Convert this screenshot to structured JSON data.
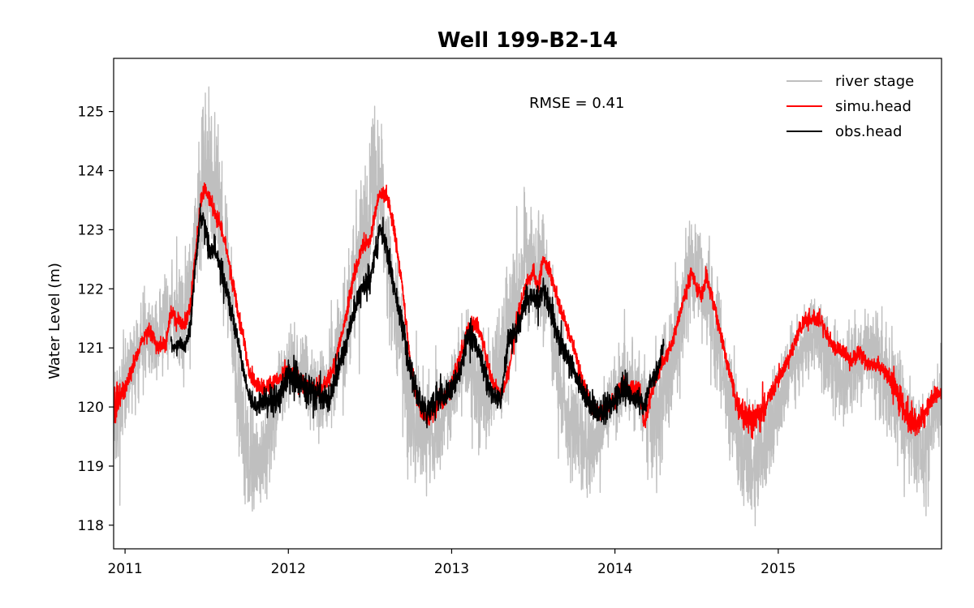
{
  "chart_data": {
    "type": "line",
    "title": "Well 199-B2-14",
    "xlabel": "",
    "ylabel": "Water Level (m)",
    "xlim": [
      2010.93,
      2016.0
    ],
    "ylim": [
      117.6,
      125.9
    ],
    "x_ticks": [
      {
        "value": 2011,
        "label": "2011"
      },
      {
        "value": 2012,
        "label": "2012"
      },
      {
        "value": 2013,
        "label": "2013"
      },
      {
        "value": 2014,
        "label": "2014"
      },
      {
        "value": 2015,
        "label": "2015"
      }
    ],
    "y_ticks": [
      118,
      119,
      120,
      121,
      122,
      123,
      124,
      125
    ],
    "grid": false,
    "legend_position": "top-right",
    "annotation": "RMSE = 0.41",
    "series": [
      {
        "name": "river stage",
        "color": "#bfbfbf",
        "x": [
          2010.93,
          2011.0,
          2011.05,
          2011.12,
          2011.2,
          2011.28,
          2011.35,
          2011.42,
          2011.46,
          2011.5,
          2011.54,
          2011.58,
          2011.64,
          2011.7,
          2011.75,
          2011.8,
          2011.88,
          2011.95,
          2012.02,
          2012.1,
          2012.18,
          2012.25,
          2012.3,
          2012.36,
          2012.42,
          2012.47,
          2012.52,
          2012.56,
          2012.6,
          2012.65,
          2012.7,
          2012.76,
          2012.82,
          2012.88,
          2012.95,
          2013.02,
          2013.08,
          2013.15,
          2013.22,
          2013.3,
          2013.38,
          2013.45,
          2013.5,
          2013.55,
          2013.6,
          2013.65,
          2013.72,
          2013.8,
          2013.88,
          2013.95,
          2014.02,
          2014.1,
          2014.18,
          2014.25,
          2014.32,
          2014.38,
          2014.44,
          2014.5,
          2014.55,
          2014.62,
          2014.7,
          2014.78,
          2014.85,
          2014.92,
          2015.0,
          2015.08,
          2015.15,
          2015.22,
          2015.3,
          2015.38,
          2015.45,
          2015.52,
          2015.6,
          2015.68,
          2015.75,
          2015.82,
          2015.88,
          2015.95,
          2016.0
        ],
        "y": [
          119.9,
          120.3,
          120.7,
          121.2,
          121.2,
          121.6,
          121.4,
          122.5,
          123.5,
          124.0,
          123.9,
          123.1,
          122.0,
          120.2,
          119.2,
          118.9,
          119.6,
          120.3,
          120.8,
          120.6,
          120.2,
          120.4,
          120.9,
          121.5,
          122.5,
          122.8,
          123.8,
          123.8,
          122.5,
          121.8,
          120.9,
          119.9,
          119.5,
          119.5,
          119.7,
          120.4,
          120.8,
          120.5,
          120.2,
          120.8,
          121.7,
          122.5,
          122.3,
          122.4,
          121.7,
          120.5,
          119.8,
          119.3,
          119.3,
          119.9,
          120.3,
          120.5,
          120.1,
          119.6,
          120.6,
          121.1,
          122.0,
          122.5,
          122.0,
          121.3,
          120.1,
          119.3,
          118.9,
          119.3,
          119.9,
          120.6,
          121.0,
          121.2,
          120.9,
          120.4,
          120.6,
          120.9,
          120.8,
          120.4,
          120.0,
          119.6,
          119.2,
          119.7,
          120.3
        ],
        "amplitude": [
          1.4,
          1.4,
          1.3,
          1.2,
          1.0,
          1.2,
          1.4,
          1.6,
          1.8,
          1.9,
          1.8,
          1.6,
          1.6,
          1.7,
          1.6,
          1.4,
          1.2,
          1.0,
          0.8,
          0.9,
          1.0,
          1.2,
          1.4,
          1.6,
          1.7,
          1.9,
          2.0,
          1.8,
          1.6,
          1.7,
          1.6,
          1.5,
          1.3,
          1.2,
          1.0,
          0.9,
          1.0,
          1.2,
          1.4,
          1.5,
          1.7,
          1.6,
          1.6,
          1.5,
          1.4,
          1.4,
          1.3,
          1.2,
          1.0,
          0.9,
          0.9,
          1.1,
          1.3,
          1.4,
          1.5,
          1.5,
          1.4,
          1.3,
          1.3,
          1.3,
          1.4,
          1.4,
          1.3,
          1.2,
          1.1,
          1.0,
          1.0,
          1.0,
          1.0,
          1.1,
          1.2,
          1.3,
          1.3,
          1.3,
          1.3,
          1.2,
          1.1,
          1.0,
          0.9
        ]
      },
      {
        "name": "simu.head",
        "color": "#ff0000",
        "x": [
          2010.93,
          2010.95,
          2011.0,
          2011.05,
          2011.1,
          2011.15,
          2011.2,
          2011.25,
          2011.28,
          2011.32,
          2011.36,
          2011.4,
          2011.43,
          2011.46,
          2011.49,
          2011.52,
          2011.55,
          2011.58,
          2011.62,
          2011.66,
          2011.7,
          2011.73,
          2011.76,
          2011.8,
          2011.85,
          2011.9,
          2011.95,
          2012.0,
          2012.05,
          2012.1,
          2012.15,
          2012.2,
          2012.25,
          2012.3,
          2012.35,
          2012.4,
          2012.45,
          2012.5,
          2012.53,
          2012.56,
          2012.6,
          2012.65,
          2012.7,
          2012.75,
          2012.8,
          2012.85,
          2012.9,
          2012.95,
          2013.0,
          2013.05,
          2013.1,
          2013.15,
          2013.2,
          2013.25,
          2013.3,
          2013.35,
          2013.4,
          2013.45,
          2013.5,
          2013.53,
          2013.56,
          2013.6,
          2013.65,
          2013.7,
          2013.75,
          2013.8,
          2013.85,
          2013.9,
          2013.95,
          2014.0,
          2014.05,
          2014.1,
          2014.15,
          2014.18,
          2014.22,
          2014.26,
          2014.3,
          2014.35,
          2014.4,
          2014.44,
          2014.47,
          2014.5,
          2014.53,
          2014.56,
          2014.6,
          2014.65,
          2014.7,
          2014.75,
          2014.8,
          2014.85,
          2014.9,
          2014.95,
          2015.0,
          2015.05,
          2015.1,
          2015.15,
          2015.2,
          2015.25,
          2015.3,
          2015.35,
          2015.4,
          2015.45,
          2015.5,
          2015.55,
          2015.6,
          2015.65,
          2015.7,
          2015.75,
          2015.8,
          2015.85,
          2015.9,
          2015.95,
          2016.0
        ],
        "y": [
          120.1,
          120.1,
          120.3,
          120.7,
          121.1,
          121.3,
          121.0,
          121.1,
          121.6,
          121.5,
          121.4,
          121.7,
          122.6,
          123.4,
          123.7,
          123.5,
          123.3,
          123.1,
          122.7,
          122.1,
          121.5,
          121.1,
          120.6,
          120.4,
          120.3,
          120.4,
          120.5,
          120.6,
          120.5,
          120.4,
          120.3,
          120.3,
          120.5,
          120.9,
          121.5,
          122.2,
          122.7,
          122.8,
          123.3,
          123.6,
          123.6,
          123.0,
          122.0,
          120.7,
          120.0,
          119.8,
          120.0,
          120.1,
          120.4,
          120.8,
          121.3,
          121.4,
          121.0,
          120.4,
          120.2,
          120.6,
          121.5,
          122.0,
          122.3,
          122.0,
          122.5,
          122.3,
          121.8,
          121.4,
          121.0,
          120.4,
          120.0,
          119.9,
          120.0,
          120.1,
          120.4,
          120.3,
          120.3,
          119.7,
          120.2,
          120.6,
          120.8,
          121.1,
          121.6,
          122.0,
          122.3,
          122.0,
          121.9,
          122.2,
          121.8,
          121.2,
          120.6,
          120.0,
          119.8,
          119.8,
          119.9,
          120.2,
          120.5,
          120.7,
          121.1,
          121.4,
          121.5,
          121.5,
          121.2,
          121.0,
          120.9,
          120.8,
          120.9,
          120.7,
          120.7,
          120.6,
          120.4,
          120.1,
          119.8,
          119.7,
          119.9,
          120.2,
          120.2
        ],
        "amplitude": [
          0.5,
          0.4,
          0.2,
          0.2,
          0.2,
          0.2,
          0.2,
          0.2,
          0.2,
          0.2,
          0.2,
          0.2,
          0.2,
          0.2,
          0.2,
          0.2,
          0.2,
          0.2,
          0.2,
          0.2,
          0.2,
          0.2,
          0.2,
          0.2,
          0.2,
          0.2,
          0.2,
          0.2,
          0.2,
          0.2,
          0.2,
          0.2,
          0.2,
          0.2,
          0.2,
          0.2,
          0.2,
          0.2,
          0.2,
          0.2,
          0.2,
          0.2,
          0.2,
          0.2,
          0.2,
          0.2,
          0.2,
          0.2,
          0.2,
          0.2,
          0.2,
          0.2,
          0.2,
          0.2,
          0.2,
          0.2,
          0.2,
          0.2,
          0.2,
          0.2,
          0.2,
          0.2,
          0.2,
          0.2,
          0.2,
          0.2,
          0.2,
          0.2,
          0.2,
          0.2,
          0.2,
          0.2,
          0.2,
          0.2,
          0.2,
          0.2,
          0.2,
          0.2,
          0.2,
          0.2,
          0.2,
          0.2,
          0.2,
          0.2,
          0.2,
          0.2,
          0.2,
          0.3,
          0.4,
          0.4,
          0.4,
          0.3,
          0.2,
          0.2,
          0.2,
          0.2,
          0.2,
          0.2,
          0.2,
          0.2,
          0.2,
          0.2,
          0.2,
          0.2,
          0.2,
          0.2,
          0.3,
          0.4,
          0.5,
          0.4,
          0.3,
          0.2,
          0.2
        ]
      },
      {
        "name": "obs.head",
        "color": "#000000",
        "x": [
          2011.28,
          2011.3,
          2011.33,
          2011.36,
          2011.38,
          2011.4,
          2011.43,
          2011.46,
          2011.49,
          2011.52,
          2011.55,
          2011.58,
          2011.62,
          2011.66,
          2011.7,
          2011.73,
          2011.76,
          2011.8,
          2011.85,
          2011.9,
          2011.95,
          2012.0,
          2012.05,
          2012.1,
          2012.15,
          2012.2,
          2012.25,
          2012.3,
          2012.35,
          2012.4,
          2012.45,
          2012.5,
          2012.53,
          2012.56,
          2012.6,
          2012.65,
          2012.7,
          2012.75,
          2012.8,
          2012.85,
          2012.9,
          2012.95,
          2013.0,
          2013.05,
          2013.1,
          2013.15,
          2013.2,
          2013.25,
          2013.3,
          2013.35,
          2013.4,
          2013.45,
          2013.5,
          2013.53,
          2013.56,
          2013.6,
          2013.65,
          2013.7,
          2013.75,
          2013.8,
          2013.85,
          2013.9,
          2013.95,
          2014.0,
          2014.05,
          2014.1,
          2014.15,
          2014.18,
          2014.22,
          2014.26,
          2014.3
        ],
        "y": [
          121.1,
          121.0,
          121.1,
          121.0,
          121.1,
          121.4,
          122.4,
          123.2,
          123.1,
          122.6,
          122.7,
          122.4,
          122.0,
          121.5,
          121.0,
          120.5,
          120.2,
          120.0,
          120.1,
          120.1,
          120.2,
          120.5,
          120.5,
          120.3,
          120.3,
          120.2,
          120.1,
          120.6,
          121.0,
          121.6,
          122.0,
          122.1,
          122.6,
          123.0,
          122.7,
          122.0,
          121.3,
          120.6,
          120.1,
          119.9,
          120.1,
          120.2,
          120.3,
          120.6,
          121.2,
          121.1,
          120.6,
          120.2,
          120.1,
          121.2,
          121.3,
          121.8,
          121.9,
          121.8,
          122.0,
          121.7,
          121.2,
          120.9,
          120.6,
          120.3,
          120.0,
          119.9,
          120.0,
          120.1,
          120.3,
          120.2,
          120.1,
          120.0,
          120.4,
          120.6,
          121.1
        ],
        "amplitude": [
          0.15,
          0.15,
          0.15,
          0.15,
          0.2,
          0.25,
          0.25,
          0.25,
          0.25,
          0.25,
          0.3,
          0.3,
          0.3,
          0.25,
          0.2,
          0.2,
          0.2,
          0.2,
          0.3,
          0.35,
          0.35,
          0.35,
          0.35,
          0.35,
          0.35,
          0.35,
          0.3,
          0.3,
          0.3,
          0.3,
          0.3,
          0.35,
          0.35,
          0.35,
          0.35,
          0.3,
          0.3,
          0.3,
          0.35,
          0.35,
          0.35,
          0.3,
          0.3,
          0.3,
          0.3,
          0.3,
          0.3,
          0.3,
          0.25,
          0.25,
          0.25,
          0.3,
          0.3,
          0.3,
          0.3,
          0.3,
          0.3,
          0.3,
          0.3,
          0.3,
          0.35,
          0.35,
          0.35,
          0.35,
          0.35,
          0.3,
          0.3,
          0.3,
          0.25,
          0.25,
          0.2
        ]
      }
    ]
  }
}
